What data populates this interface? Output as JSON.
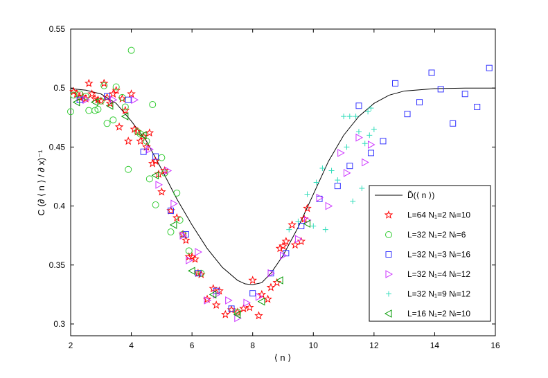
{
  "chart_data": {
    "type": "scatter",
    "xlabel": "⟨ n ⟩",
    "ylabel": "C (∂ ⟨ n ⟩ / ∂ x)⁻¹",
    "xlim": [
      2,
      16
    ],
    "ylim": [
      0.29,
      0.55
    ],
    "xticks": [
      2,
      4,
      6,
      8,
      10,
      12,
      14,
      16
    ],
    "yticks": [
      0.3,
      0.35,
      0.4,
      0.45,
      0.5,
      0.55
    ],
    "ytick_labels": [
      "0.3",
      "0.35",
      "0.4",
      "0.45",
      "0.5",
      "0.55"
    ],
    "legend_position": "lower-right",
    "series": [
      {
        "name": "D̃(⟨ n ⟩)",
        "marker": "line",
        "color": "#000000",
        "points": [
          [
            2.0,
            0.4995
          ],
          [
            2.5,
            0.4982
          ],
          [
            3.0,
            0.495
          ],
          [
            3.5,
            0.487
          ],
          [
            4.0,
            0.472
          ],
          [
            4.5,
            0.455
          ],
          [
            5.0,
            0.431
          ],
          [
            5.5,
            0.406
          ],
          [
            6.0,
            0.384
          ],
          [
            6.5,
            0.364
          ],
          [
            7.0,
            0.348
          ],
          [
            7.5,
            0.337
          ],
          [
            7.75,
            0.334
          ],
          [
            8.0,
            0.3333
          ],
          [
            8.3,
            0.335
          ],
          [
            8.6,
            0.343
          ],
          [
            9.0,
            0.358
          ],
          [
            9.5,
            0.382
          ],
          [
            10.0,
            0.41
          ],
          [
            10.5,
            0.438
          ],
          [
            11.0,
            0.46
          ],
          [
            11.5,
            0.476
          ],
          [
            12.0,
            0.487
          ],
          [
            12.5,
            0.494
          ],
          [
            13.0,
            0.4975
          ],
          [
            14.0,
            0.4995
          ],
          [
            15.0,
            0.5
          ],
          [
            16.0,
            0.5
          ]
        ]
      },
      {
        "name": "L=64 N₁=2 Nₗ=10",
        "marker": "star",
        "color": "#ff0000",
        "points": [
          [
            2.1,
            0.497
          ],
          [
            2.2,
            0.495
          ],
          [
            2.3,
            0.492
          ],
          [
            2.4,
            0.493
          ],
          [
            2.5,
            0.491
          ],
          [
            2.6,
            0.504
          ],
          [
            2.7,
            0.495
          ],
          [
            2.8,
            0.491
          ],
          [
            2.9,
            0.49
          ],
          [
            3.0,
            0.489
          ],
          [
            3.1,
            0.504
          ],
          [
            3.2,
            0.492
          ],
          [
            3.3,
            0.487
          ],
          [
            3.4,
            0.495
          ],
          [
            3.5,
            0.498
          ],
          [
            3.6,
            0.467
          ],
          [
            3.7,
            0.491
          ],
          [
            3.8,
            0.481
          ],
          [
            3.9,
            0.455
          ],
          [
            4.0,
            0.495
          ],
          [
            4.1,
            0.465
          ],
          [
            4.2,
            0.463
          ],
          [
            4.3,
            0.455
          ],
          [
            4.4,
            0.459
          ],
          [
            4.5,
            0.45
          ],
          [
            4.6,
            0.462
          ],
          [
            4.7,
            0.436
          ],
          [
            4.8,
            0.438
          ],
          [
            4.9,
            0.427
          ],
          [
            5.0,
            0.412
          ],
          [
            5.1,
            0.43
          ],
          [
            5.3,
            0.396
          ],
          [
            5.5,
            0.39
          ],
          [
            5.7,
            0.376
          ],
          [
            5.8,
            0.371
          ],
          [
            5.9,
            0.357
          ],
          [
            6.0,
            0.357
          ],
          [
            6.1,
            0.355
          ],
          [
            6.2,
            0.343
          ],
          [
            6.3,
            0.342
          ],
          [
            6.5,
            0.321
          ],
          [
            6.7,
            0.33
          ],
          [
            6.8,
            0.316
          ],
          [
            6.9,
            0.328
          ],
          [
            7.1,
            0.308
          ],
          [
            7.3,
            0.312
          ],
          [
            7.5,
            0.31
          ],
          [
            7.7,
            0.313
          ],
          [
            7.9,
            0.314
          ],
          [
            8.0,
            0.337
          ],
          [
            8.2,
            0.307
          ],
          [
            8.3,
            0.325
          ],
          [
            8.5,
            0.321
          ],
          [
            8.6,
            0.331
          ],
          [
            8.8,
            0.335
          ],
          [
            8.9,
            0.364
          ],
          [
            9.0,
            0.366
          ],
          [
            9.1,
            0.37
          ],
          [
            9.3,
            0.384
          ],
          [
            9.4,
            0.367
          ],
          [
            9.6,
            0.37
          ],
          [
            9.7,
            0.389
          ],
          [
            9.8,
            0.398
          ]
        ]
      },
      {
        "name": "L=32 N₁=2 Nₗ=6",
        "marker": "circle",
        "color": "#33cc33",
        "points": [
          [
            2.0,
            0.48
          ],
          [
            2.1,
            0.494
          ],
          [
            2.3,
            0.495
          ],
          [
            2.5,
            0.493
          ],
          [
            2.6,
            0.481
          ],
          [
            2.8,
            0.481
          ],
          [
            2.9,
            0.482
          ],
          [
            3.0,
            0.489
          ],
          [
            3.1,
            0.502
          ],
          [
            3.2,
            0.47
          ],
          [
            3.4,
            0.473
          ],
          [
            3.5,
            0.501
          ],
          [
            3.7,
            0.492
          ],
          [
            3.8,
            0.484
          ],
          [
            3.9,
            0.431
          ],
          [
            4.0,
            0.532
          ],
          [
            4.2,
            0.463
          ],
          [
            4.3,
            0.461
          ],
          [
            4.5,
            0.455
          ],
          [
            4.6,
            0.423
          ],
          [
            4.7,
            0.486
          ],
          [
            4.8,
            0.401
          ],
          [
            5.0,
            0.441
          ],
          [
            5.1,
            0.428
          ],
          [
            5.3,
            0.378
          ],
          [
            5.5,
            0.411
          ],
          [
            5.6,
            0.388
          ],
          [
            5.7,
            0.376
          ],
          [
            5.9,
            0.362
          ],
          [
            6.3,
            0.343
          ],
          [
            7.5,
            0.31
          ]
        ]
      },
      {
        "name": "L=32 N₁=3 Nₗ=16",
        "marker": "square",
        "color": "#3333ff",
        "points": [
          [
            2.3,
            0.49
          ],
          [
            3.2,
            0.493
          ],
          [
            3.9,
            0.49
          ],
          [
            4.4,
            0.446
          ],
          [
            4.8,
            0.442
          ],
          [
            5.3,
            0.396
          ],
          [
            5.8,
            0.376
          ],
          [
            6.2,
            0.343
          ],
          [
            6.8,
            0.328
          ],
          [
            7.3,
            0.313
          ],
          [
            8.0,
            0.326
          ],
          [
            8.6,
            0.343
          ],
          [
            9.1,
            0.36
          ],
          [
            9.6,
            0.383
          ],
          [
            10.2,
            0.406
          ],
          [
            10.8,
            0.417
          ],
          [
            11.2,
            0.434
          ],
          [
            11.5,
            0.485
          ],
          [
            11.9,
            0.445
          ],
          [
            12.3,
            0.455
          ],
          [
            12.7,
            0.504
          ],
          [
            13.1,
            0.478
          ],
          [
            13.5,
            0.488
          ],
          [
            13.9,
            0.513
          ],
          [
            14.2,
            0.499
          ],
          [
            14.6,
            0.47
          ],
          [
            15.0,
            0.495
          ],
          [
            15.4,
            0.484
          ],
          [
            15.8,
            0.517
          ]
        ]
      },
      {
        "name": "L=32 N₁=4 Nₗ=12",
        "marker": "triangle-right",
        "color": "#cc33ff",
        "points": [
          [
            2.5,
            0.49
          ],
          [
            3.4,
            0.49
          ],
          [
            4.1,
            0.49
          ],
          [
            4.6,
            0.448
          ],
          [
            4.9,
            0.418
          ],
          [
            5.2,
            0.43
          ],
          [
            5.4,
            0.402
          ],
          [
            5.7,
            0.375
          ],
          [
            5.9,
            0.354
          ],
          [
            6.2,
            0.361
          ],
          [
            6.5,
            0.32
          ],
          [
            6.8,
            0.325
          ],
          [
            7.2,
            0.32
          ],
          [
            7.5,
            0.305
          ],
          [
            7.8,
            0.318
          ],
          [
            8.2,
            0.323
          ],
          [
            8.6,
            0.343
          ],
          [
            9.0,
            0.358
          ],
          [
            9.5,
            0.372
          ],
          [
            9.8,
            0.388
          ],
          [
            10.2,
            0.407
          ],
          [
            10.5,
            0.4
          ],
          [
            10.9,
            0.445
          ],
          [
            11.1,
            0.428
          ],
          [
            11.5,
            0.458
          ],
          [
            11.7,
            0.437
          ],
          [
            11.9,
            0.452
          ]
        ]
      },
      {
        "name": "L=32 N₁=9 Nₗ=12",
        "marker": "plus",
        "color": "#33ddbb",
        "points": [
          [
            9.2,
            0.38
          ],
          [
            9.5,
            0.387
          ],
          [
            9.8,
            0.41
          ],
          [
            10.0,
            0.383
          ],
          [
            10.1,
            0.42
          ],
          [
            10.3,
            0.432
          ],
          [
            10.4,
            0.38
          ],
          [
            10.6,
            0.43
          ],
          [
            10.8,
            0.422
          ],
          [
            11.0,
            0.476
          ],
          [
            11.1,
            0.45
          ],
          [
            11.2,
            0.476
          ],
          [
            11.3,
            0.404
          ],
          [
            11.4,
            0.476
          ],
          [
            11.5,
            0.463
          ],
          [
            11.6,
            0.415
          ],
          [
            11.7,
            0.453
          ],
          [
            11.8,
            0.48
          ],
          [
            11.9,
            0.483
          ],
          [
            12.0,
            0.465
          ],
          [
            11.85,
            0.46
          ]
        ]
      },
      {
        "name": "L=16 N₁=2 Nₗ=10",
        "marker": "triangle-left",
        "color": "#009900",
        "points": [
          [
            2.2,
            0.488
          ],
          [
            2.8,
            0.488
          ],
          [
            3.3,
            0.485
          ],
          [
            3.8,
            0.476
          ],
          [
            4.4,
            0.46
          ],
          [
            4.8,
            0.426
          ],
          [
            5.4,
            0.384
          ],
          [
            6.0,
            0.345
          ],
          [
            6.7,
            0.325
          ],
          [
            7.5,
            0.308
          ],
          [
            8.3,
            0.319
          ],
          [
            8.9,
            0.337
          ],
          [
            9.8,
            0.385
          ]
        ]
      }
    ]
  }
}
